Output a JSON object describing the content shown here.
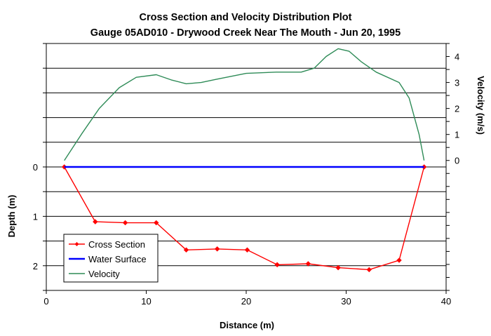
{
  "chart_data": {
    "type": "line",
    "title": "Cross Section and Velocity Distribution Plot",
    "subtitle": "Gauge 05AD010 - Drywood Creek Near The Mouth - Jun 20, 1995",
    "xlabel": "Distance (m)",
    "ylabel_left": "Depth (m)",
    "ylabel_right": "Velocity (m/s)",
    "xlim": [
      0,
      40
    ],
    "depth_lim": [
      2.5,
      -2.5
    ],
    "velocity_lim": [
      -5,
      4.5
    ],
    "x_ticks": [
      "0",
      "10",
      "20",
      "30",
      "40"
    ],
    "depth_ticks": [
      "0",
      "1",
      "2"
    ],
    "velocity_ticks": [
      "0",
      "1",
      "2",
      "3",
      "4"
    ],
    "grid": "horizontal",
    "legend_position": "bottom-left",
    "series": [
      {
        "name": "Cross Section",
        "axis": "depth",
        "color": "#ff0000",
        "marker": "diamond",
        "points": [
          [
            1.8,
            0
          ],
          [
            4.9,
            1.11
          ],
          [
            7.9,
            1.13
          ],
          [
            11.0,
            1.13
          ],
          [
            14.0,
            1.68
          ],
          [
            17.1,
            1.66
          ],
          [
            20.1,
            1.68
          ],
          [
            23.1,
            1.98
          ],
          [
            26.2,
            1.96
          ],
          [
            29.2,
            2.04
          ],
          [
            32.3,
            2.08
          ],
          [
            35.3,
            1.89
          ],
          [
            37.8,
            0
          ]
        ]
      },
      {
        "name": "Water Surface",
        "axis": "depth",
        "color": "#0000ff",
        "marker": "none",
        "points": [
          [
            1.8,
            0
          ],
          [
            37.8,
            0
          ]
        ]
      },
      {
        "name": "Velocity",
        "axis": "velocity",
        "color": "#2e8b57",
        "marker": "none",
        "points": [
          [
            1.8,
            0
          ],
          [
            3.5,
            1.0
          ],
          [
            5.3,
            2.0
          ],
          [
            7.3,
            2.8
          ],
          [
            9.0,
            3.2
          ],
          [
            11.0,
            3.3
          ],
          [
            12.5,
            3.1
          ],
          [
            14.0,
            2.95
          ],
          [
            15.5,
            3.0
          ],
          [
            17.0,
            3.12
          ],
          [
            20.0,
            3.35
          ],
          [
            23.0,
            3.4
          ],
          [
            25.5,
            3.4
          ],
          [
            26.8,
            3.55
          ],
          [
            28.0,
            4.0
          ],
          [
            29.2,
            4.3
          ],
          [
            30.3,
            4.2
          ],
          [
            31.5,
            3.8
          ],
          [
            33.0,
            3.4
          ],
          [
            35.3,
            3.0
          ],
          [
            36.3,
            2.4
          ],
          [
            37.3,
            1.0
          ],
          [
            37.8,
            0
          ]
        ]
      }
    ]
  }
}
